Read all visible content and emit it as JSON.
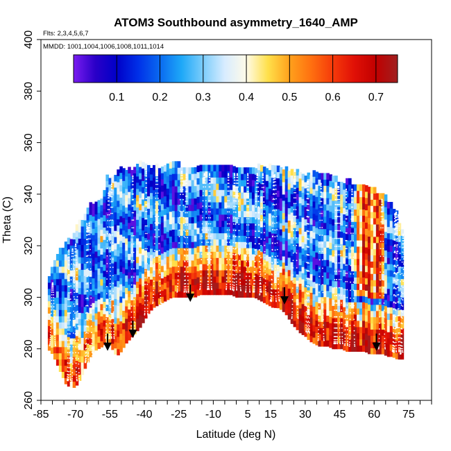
{
  "chart_data": {
    "type": "heatmap",
    "title": "ATOM3 Southbound asymmetry_1640_AMP",
    "flights_note": "Flts: 2,3,4,5,6,7",
    "dates_note": "MMDD: 1001,1004,1006,1008,1011,1014",
    "xlabel": "Latitude (deg N)",
    "ylabel": "Theta (C)",
    "xlim": [
      -85,
      85
    ],
    "ylim": [
      260,
      400
    ],
    "x_ticks": [
      -85,
      -80,
      -75,
      -70,
      -65,
      -60,
      -55,
      -50,
      -45,
      -40,
      -35,
      -30,
      -25,
      -20,
      -15,
      -10,
      -5,
      0,
      5,
      10,
      15,
      20,
      25,
      30,
      35,
      40,
      45,
      50,
      55,
      60,
      65,
      70,
      75,
      80,
      85
    ],
    "x_tick_labels": [
      {
        "value": -85,
        "label": "-85"
      },
      {
        "value": -70,
        "label": "-70"
      },
      {
        "value": -55,
        "label": "-55"
      },
      {
        "value": -40,
        "label": "-40"
      },
      {
        "value": -25,
        "label": "-25"
      },
      {
        "value": -10,
        "label": "-10"
      },
      {
        "value": 5,
        "label": "5"
      },
      {
        "value": 15,
        "label": "15"
      },
      {
        "value": 30,
        "label": "30"
      },
      {
        "value": 45,
        "label": "45"
      },
      {
        "value": 60,
        "label": "60"
      },
      {
        "value": 75,
        "label": "75"
      }
    ],
    "y_tick_labels": [
      {
        "value": 260,
        "label": "260"
      },
      {
        "value": 280,
        "label": "280"
      },
      {
        "value": 300,
        "label": "300"
      },
      {
        "value": 320,
        "label": "320"
      },
      {
        "value": 340,
        "label": "340"
      },
      {
        "value": 360,
        "label": "360"
      },
      {
        "value": 380,
        "label": "380"
      },
      {
        "value": 400,
        "label": "400"
      }
    ],
    "colorbar": {
      "min": 0.0,
      "max": 0.75,
      "tick_labels": [
        {
          "value": 0.1,
          "label": "0.1"
        },
        {
          "value": 0.2,
          "label": "0.2"
        },
        {
          "value": 0.3,
          "label": "0.3"
        },
        {
          "value": 0.4,
          "label": "0.4"
        },
        {
          "value": 0.5,
          "label": "0.5"
        },
        {
          "value": 0.6,
          "label": "0.6"
        },
        {
          "value": 0.7,
          "label": "0.7"
        }
      ],
      "color_stops": [
        {
          "value": 0.0,
          "color": "#7a1cf0"
        },
        {
          "value": 0.05,
          "color": "#2a00c8"
        },
        {
          "value": 0.1,
          "color": "#0000c8"
        },
        {
          "value": 0.15,
          "color": "#0030e8"
        },
        {
          "value": 0.2,
          "color": "#0a6af0"
        },
        {
          "value": 0.25,
          "color": "#1ea8f8"
        },
        {
          "value": 0.3,
          "color": "#7ccdfb"
        },
        {
          "value": 0.35,
          "color": "#d8ecff"
        },
        {
          "value": 0.4,
          "color": "#fffbe8"
        },
        {
          "value": 0.45,
          "color": "#ffe04a"
        },
        {
          "value": 0.5,
          "color": "#ffa11c"
        },
        {
          "value": 0.55,
          "color": "#ff7010"
        },
        {
          "value": 0.6,
          "color": "#f53a0a"
        },
        {
          "value": 0.65,
          "color": "#e01006"
        },
        {
          "value": 0.7,
          "color": "#c00000"
        },
        {
          "value": 0.75,
          "color": "#a02020"
        }
      ]
    },
    "data_envelope": {
      "lat": [
        -82,
        -80,
        -78,
        -76,
        -74,
        -72,
        -70,
        -68,
        -66,
        -64,
        -62,
        -60,
        -58,
        -56,
        -54,
        -52,
        -50,
        -48,
        -46,
        -44,
        -42,
        -40,
        -38,
        -36,
        -34,
        -32,
        -30,
        -28,
        -26,
        -24,
        -22,
        -20,
        -18,
        -16,
        -14,
        -12,
        -10,
        -8,
        -6,
        -4,
        -2,
        0,
        2,
        4,
        6,
        8,
        10,
        12,
        14,
        16,
        18,
        20,
        22,
        24,
        26,
        28,
        30,
        32,
        34,
        36,
        38,
        40,
        42,
        44,
        46,
        48,
        50,
        52,
        54,
        56,
        58,
        60,
        62,
        64,
        66,
        68,
        70,
        72
      ],
      "theta_top": [
        306,
        310,
        315,
        318,
        320,
        322,
        325,
        328,
        330,
        334,
        336,
        337,
        338,
        346,
        346,
        348,
        349,
        349,
        349,
        350,
        351,
        351,
        350,
        350,
        350,
        350,
        351,
        351,
        351,
        350,
        350,
        350,
        350,
        350,
        350,
        350,
        350,
        350,
        350,
        350,
        350,
        350,
        350,
        350,
        350,
        350,
        350,
        350,
        350,
        349,
        349,
        349,
        349,
        349,
        348,
        348,
        347,
        347,
        347,
        346,
        346,
        346,
        345,
        345,
        344,
        344,
        344,
        343,
        343,
        342,
        341,
        341,
        340,
        339,
        336,
        335,
        332,
        324
      ],
      "theta_bottom": [
        280,
        278,
        274,
        270,
        266,
        265,
        265,
        268,
        272,
        276,
        279,
        280,
        281,
        283,
        280,
        277,
        279,
        282,
        284,
        286,
        288,
        291,
        294,
        296,
        297,
        298,
        299,
        300,
        300,
        300,
        300,
        300,
        300,
        301,
        301,
        301,
        301,
        301,
        301,
        301,
        301,
        300,
        300,
        300,
        300,
        300,
        299,
        298,
        297,
        296,
        296,
        295,
        293,
        290,
        288,
        286,
        285,
        283,
        282,
        281,
        281,
        281,
        280,
        280,
        280,
        279,
        279,
        279,
        279,
        279,
        278,
        278,
        278,
        278,
        277,
        277,
        276,
        276
      ]
    },
    "tropopause_markers": [
      {
        "lat": -56,
        "theta": 280
      },
      {
        "lat": -45,
        "theta": 285
      },
      {
        "lat": -20,
        "theta": 299
      },
      {
        "lat": 21,
        "theta": 298
      },
      {
        "lat": 61,
        "theta": 280
      }
    ]
  }
}
